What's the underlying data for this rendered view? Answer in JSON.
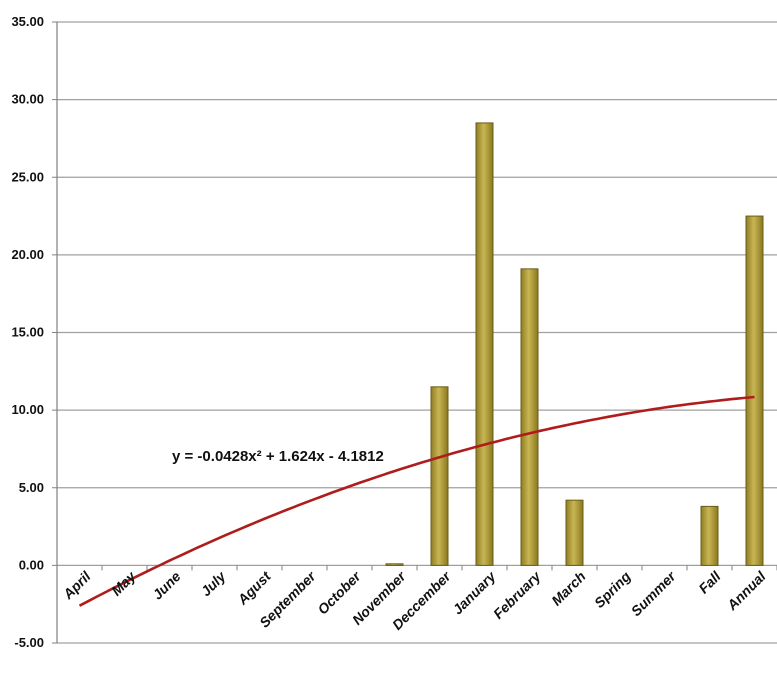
{
  "chart_data": {
    "type": "bar",
    "categories": [
      "April",
      "May",
      "June",
      "July",
      "Agust",
      "September",
      "October",
      "November",
      "Deccember",
      "January",
      "February",
      "March",
      "Spring",
      "Summer",
      "Fall",
      "Annual"
    ],
    "values": [
      0,
      0,
      0,
      0,
      0,
      0,
      0,
      0.1,
      11.5,
      28.5,
      19.1,
      4.2,
      0,
      0,
      3.8,
      22.5
    ],
    "yticks": [
      "-5.00",
      "0.00",
      "5.00",
      "10.00",
      "15.00",
      "20.00",
      "25.00",
      "30.00",
      "35.00"
    ],
    "ylim": [
      -5,
      35
    ],
    "grid": true,
    "legend": "none",
    "trendline": {
      "type": "polynomial",
      "order": 2,
      "coefficients": [
        -0.0428,
        1.624,
        -4.1812
      ],
      "equation": "y = -0.0428x² + 1.624x - 4.1812",
      "color": "#b01c1c"
    },
    "colors": {
      "bar_fill": "#b8a540",
      "bar_edge": "#6a5c1a",
      "grid": "#a0a0a0",
      "axis": "#808080"
    }
  }
}
